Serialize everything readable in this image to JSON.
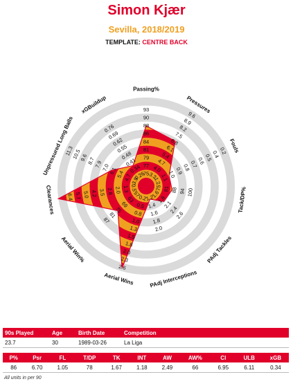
{
  "header": {
    "title": "Simon Kjær",
    "subtitle": "Sevilla, 2018/2019",
    "template_label": "TEMPLATE: ",
    "template_value": "CENTRE BACK"
  },
  "colors": {
    "red": "#e0002a",
    "orange": "#f0a020",
    "ring_grey": "#dadada"
  },
  "chart_data": {
    "type": "radar",
    "axes": [
      {
        "label": "Passing%",
        "ticks": [
          "75",
          "77",
          "79",
          "81",
          "84",
          "86",
          "88",
          "90",
          "93"
        ],
        "value": 86
      },
      {
        "label": "Pressures",
        "ticks": [
          "3.3",
          "4.0",
          "4.7",
          "5.4",
          "6.1",
          "6.8",
          "7.5",
          "8.2",
          "8.9",
          "9.6"
        ],
        "value": 6.7
      },
      {
        "label": "Fouls",
        "ticks": [
          "1.2",
          "1.1",
          "1.0",
          "0.9",
          "0.8",
          "0.7",
          "0.6",
          "0.5",
          "0.4",
          "0.2"
        ],
        "value": 1.05
      },
      {
        "label": "Tack/DP%",
        "ticks": [
          "75",
          "81",
          "88",
          "94",
          "100"
        ],
        "value": 78
      },
      {
        "label": "PAdj Tackles",
        "ticks": [
          "1.6",
          "1.8",
          "2.1",
          "2.4",
          "2.6"
        ],
        "value": 1.67
      },
      {
        "label": "PAdj Interceptions",
        "ticks": [
          "1.2",
          "1.4",
          "1.6",
          "1.8",
          "2.0"
        ],
        "value": 1.18
      },
      {
        "label": "Aerial Wins",
        "ticks": [
          "0.2",
          "0.5",
          "0.8",
          "1.0",
          "1.3",
          "1.5",
          "1.8",
          "2.0",
          "2.3",
          "2.6"
        ],
        "value": 2.49
      },
      {
        "label": "Aerial Win%",
        "ticks": [
          "57",
          "63",
          "69",
          "75",
          "81",
          "87"
        ],
        "value": 66
      },
      {
        "label": "Clearances",
        "ticks": [
          "0.5",
          "1.3",
          "2.0",
          "2.8",
          "3.5",
          "4.2",
          "5.0",
          "5.7",
          "6.4"
        ],
        "value": 6.95
      },
      {
        "label": "Unpressured Long Balls",
        "ticks": [
          "3.9",
          "4.7",
          "5.4",
          "6.1",
          "7.0",
          "7.9",
          "8.7",
          "9.6",
          "10.5",
          "11.3"
        ],
        "value": 6.11
      },
      {
        "label": "xGBuildup",
        "ticks": [
          "0.26",
          "0.34",
          "0.41",
          "0.48",
          "0.55",
          "0.62",
          "0.69",
          "0.76"
        ],
        "value": 0.34
      }
    ],
    "ring_count": 10
  },
  "info_table": {
    "headers": [
      "90s Played",
      "Age",
      "Birth Date",
      "Competition"
    ],
    "values": [
      "23.7",
      "30",
      "1989-03-26",
      "La Liga"
    ]
  },
  "stats_table": {
    "headers": [
      "P%",
      "Psr",
      "FL",
      "T/DP",
      "TK",
      "INT",
      "AW",
      "AW%",
      "Cl",
      "ULB",
      "xGB"
    ],
    "values": [
      "86",
      "6.70",
      "1.05",
      "78",
      "1.67",
      "1.18",
      "2.49",
      "66",
      "6.95",
      "6.11",
      "0.34"
    ]
  },
  "footnote": "All units in per 90"
}
